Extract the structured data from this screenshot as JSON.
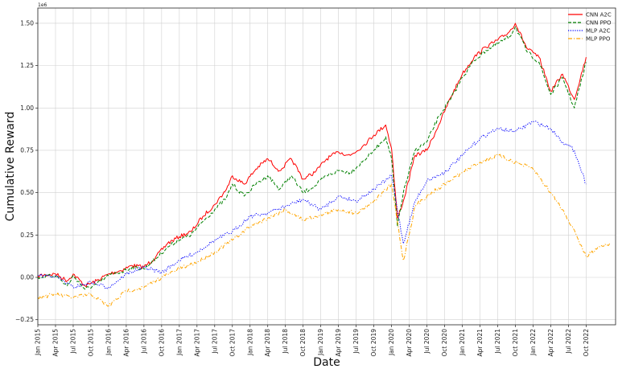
{
  "chart_data": {
    "type": "line",
    "title": "",
    "xlabel": "Date",
    "ylabel": "Cumulative Reward",
    "y_scale_label": "1e6",
    "x_range": [
      "2015-01",
      "2023-03"
    ],
    "ylim": [
      -0.28,
      1.59
    ],
    "y_ticks": [
      -0.25,
      0.0,
      0.25,
      0.5,
      0.75,
      1.0,
      1.25,
      1.5
    ],
    "y_tick_labels": [
      "−0.25",
      "0.00",
      "0.25",
      "0.50",
      "0.75",
      "1.00",
      "1.25",
      "1.50"
    ],
    "x_tick_labels": [
      "Jan 2015",
      "Apr 2015",
      "Jul 2015",
      "Oct 2015",
      "Jan 2016",
      "Apr 2016",
      "Jul 2016",
      "Oct 2016",
      "Jan 2017",
      "Apr 2017",
      "Jul 2017",
      "Oct 2017",
      "Jan 2018",
      "Apr 2018",
      "Jul 2018",
      "Oct 2018",
      "Jan 2019",
      "Apr 2019",
      "Jul 2019",
      "Oct 2019",
      "Jan 2020",
      "Apr 2020",
      "Jul 2020",
      "Oct 2020",
      "Jan 2021",
      "Apr 2021",
      "Jul 2021",
      "Oct 2021",
      "Jan 2022",
      "Apr 2022",
      "Jul 2022",
      "Oct 2022"
    ],
    "grid": true,
    "legend_position": "top-right",
    "series": [
      {
        "name": "CNN A2C",
        "color": "#ff0000",
        "dash": "solid",
        "x": [
          "2015-01",
          "2015-04",
          "2015-06",
          "2015-07",
          "2015-09",
          "2015-11",
          "2016-01",
          "2016-03",
          "2016-05",
          "2016-07",
          "2016-09",
          "2016-11",
          "2017-01",
          "2017-03",
          "2017-05",
          "2017-07",
          "2017-09",
          "2017-10",
          "2017-12",
          "2018-02",
          "2018-04",
          "2018-06",
          "2018-08",
          "2018-10",
          "2018-12",
          "2019-02",
          "2019-04",
          "2019-06",
          "2019-08",
          "2019-10",
          "2019-12",
          "2020-01",
          "2020-02",
          "2020-03",
          "2020-05",
          "2020-07",
          "2020-09",
          "2020-11",
          "2021-01",
          "2021-03",
          "2021-05",
          "2021-07",
          "2021-09",
          "2021-10",
          "2021-12",
          "2022-02",
          "2022-04",
          "2022-06",
          "2022-08",
          "2022-10"
        ],
        "y": [
          0.01,
          0.02,
          -0.02,
          0.02,
          -0.05,
          -0.02,
          0.02,
          0.04,
          0.07,
          0.06,
          0.12,
          0.2,
          0.24,
          0.27,
          0.36,
          0.43,
          0.52,
          0.6,
          0.55,
          0.64,
          0.7,
          0.63,
          0.7,
          0.58,
          0.62,
          0.7,
          0.74,
          0.72,
          0.77,
          0.84,
          0.9,
          0.76,
          0.35,
          0.45,
          0.72,
          0.75,
          0.9,
          1.06,
          1.2,
          1.3,
          1.36,
          1.4,
          1.45,
          1.5,
          1.35,
          1.3,
          1.1,
          1.2,
          1.05,
          1.3
        ]
      },
      {
        "name": "CNN PPO",
        "color": "#008000",
        "dash": "dashed",
        "x": [
          "2015-01",
          "2015-04",
          "2015-06",
          "2015-07",
          "2015-09",
          "2015-11",
          "2016-01",
          "2016-03",
          "2016-05",
          "2016-07",
          "2016-09",
          "2016-11",
          "2017-01",
          "2017-03",
          "2017-05",
          "2017-07",
          "2017-09",
          "2017-10",
          "2017-12",
          "2018-02",
          "2018-04",
          "2018-06",
          "2018-08",
          "2018-10",
          "2018-12",
          "2019-02",
          "2019-04",
          "2019-06",
          "2019-08",
          "2019-10",
          "2019-12",
          "2020-01",
          "2020-02",
          "2020-03",
          "2020-05",
          "2020-07",
          "2020-09",
          "2020-11",
          "2021-01",
          "2021-03",
          "2021-05",
          "2021-07",
          "2021-09",
          "2021-10",
          "2021-12",
          "2022-02",
          "2022-04",
          "2022-06",
          "2022-08",
          "2022-10"
        ],
        "y": [
          0.0,
          0.01,
          -0.05,
          0.01,
          -0.07,
          -0.04,
          0.01,
          0.03,
          0.06,
          0.05,
          0.11,
          0.18,
          0.22,
          0.25,
          0.33,
          0.4,
          0.47,
          0.55,
          0.48,
          0.55,
          0.6,
          0.52,
          0.6,
          0.5,
          0.54,
          0.6,
          0.63,
          0.62,
          0.68,
          0.75,
          0.83,
          0.7,
          0.3,
          0.5,
          0.75,
          0.8,
          0.95,
          1.05,
          1.18,
          1.28,
          1.34,
          1.38,
          1.42,
          1.48,
          1.33,
          1.27,
          1.08,
          1.18,
          1.0,
          1.27
        ]
      },
      {
        "name": "MLP A2C",
        "color": "#0000ff",
        "dash": "dotted",
        "x": [
          "2015-01",
          "2015-04",
          "2015-07",
          "2015-10",
          "2016-01",
          "2016-04",
          "2016-07",
          "2016-10",
          "2017-01",
          "2017-04",
          "2017-07",
          "2017-10",
          "2018-01",
          "2018-04",
          "2018-07",
          "2018-10",
          "2019-01",
          "2019-04",
          "2019-07",
          "2019-10",
          "2020-01",
          "2020-03",
          "2020-05",
          "2020-07",
          "2020-10",
          "2021-01",
          "2021-04",
          "2021-07",
          "2021-10",
          "2022-01",
          "2022-04",
          "2022-06",
          "2022-08",
          "2022-10"
        ],
        "y": [
          0.01,
          0.01,
          -0.06,
          -0.03,
          -0.06,
          0.02,
          0.06,
          0.03,
          0.1,
          0.15,
          0.22,
          0.27,
          0.36,
          0.38,
          0.42,
          0.46,
          0.4,
          0.48,
          0.45,
          0.52,
          0.6,
          0.2,
          0.45,
          0.57,
          0.62,
          0.72,
          0.82,
          0.88,
          0.86,
          0.92,
          0.88,
          0.8,
          0.75,
          0.55
        ]
      },
      {
        "name": "MLP PPO",
        "color": "#ffa500",
        "dash": "dashdot",
        "x": [
          "2015-01",
          "2015-04",
          "2015-07",
          "2015-10",
          "2016-01",
          "2016-04",
          "2016-07",
          "2016-10",
          "2017-01",
          "2017-04",
          "2017-07",
          "2017-10",
          "2018-01",
          "2018-04",
          "2018-07",
          "2018-10",
          "2019-01",
          "2019-04",
          "2019-07",
          "2019-10",
          "2020-01",
          "2020-03",
          "2020-05",
          "2020-07",
          "2020-10",
          "2021-01",
          "2021-04",
          "2021-07",
          "2021-10",
          "2022-01",
          "2022-04",
          "2022-06",
          "2022-08",
          "2022-10",
          "2022-12",
          "2023-02"
        ],
        "y": [
          -0.12,
          -0.1,
          -0.12,
          -0.1,
          -0.17,
          -0.08,
          -0.06,
          0.0,
          0.05,
          0.09,
          0.15,
          0.22,
          0.3,
          0.35,
          0.4,
          0.34,
          0.37,
          0.4,
          0.38,
          0.45,
          0.55,
          0.1,
          0.42,
          0.48,
          0.55,
          0.62,
          0.68,
          0.72,
          0.68,
          0.64,
          0.5,
          0.4,
          0.28,
          0.12,
          0.18,
          0.2
        ]
      }
    ]
  }
}
